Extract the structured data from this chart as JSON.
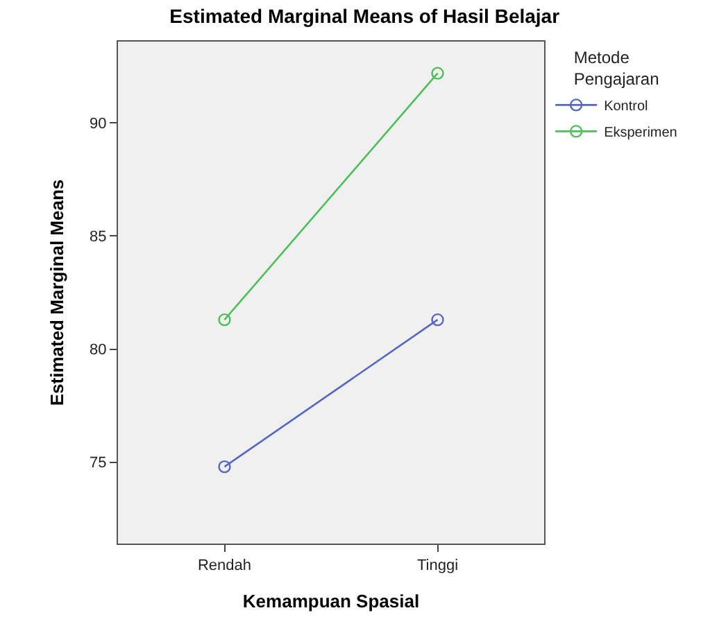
{
  "chart_data": {
    "type": "line",
    "title": "Estimated Marginal Means of Hasil Belajar",
    "xlabel": "Kemampuan Spasial",
    "ylabel": "Estimated Marginal Means",
    "legend_title": "Metode Pengajaran",
    "categories": [
      "Rendah",
      "Tinggi"
    ],
    "series": [
      {
        "name": "Kontrol",
        "color": "#5468c0",
        "values": [
          74.8,
          81.3
        ]
      },
      {
        "name": "Eksperimen",
        "color": "#4cbf57",
        "values": [
          81.3,
          92.2
        ]
      }
    ],
    "ylim": [
      71.4,
      93.6
    ],
    "yticks": [
      75,
      80,
      85,
      90
    ],
    "grid": false,
    "legend": "top right",
    "marker": "circle",
    "line_style": "solid"
  }
}
